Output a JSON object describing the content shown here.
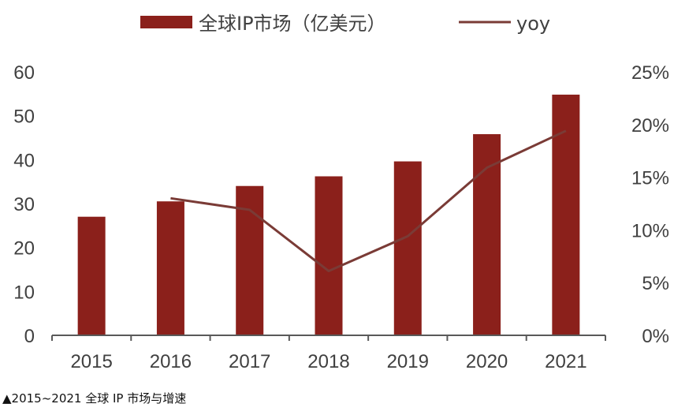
{
  "caption": "▲2015~2021 全球 IP 市场与增速",
  "colors": {
    "bar": "#8b201b",
    "line": "#7a3b36",
    "axis": "#595959",
    "text": "#404040"
  },
  "chart_data": {
    "type": "bar",
    "title": "",
    "categories": [
      "2015",
      "2016",
      "2017",
      "2018",
      "2019",
      "2020",
      "2021"
    ],
    "series": [
      {
        "name": "全球IP市场（亿美元）",
        "type": "bar",
        "axis": "left",
        "values": [
          27,
          30.5,
          34,
          36.2,
          39.6,
          45.8,
          54.8
        ]
      },
      {
        "name": "yoy",
        "type": "line",
        "axis": "right",
        "values": [
          null,
          13.0,
          11.9,
          6.1,
          9.4,
          15.9,
          19.4
        ]
      }
    ],
    "y_left": {
      "range": [
        0,
        60
      ],
      "ticks": [
        "0",
        "10",
        "20",
        "30",
        "40",
        "50",
        "60"
      ]
    },
    "y_right": {
      "range": [
        0,
        25
      ],
      "ticks": [
        "0%",
        "5%",
        "10%",
        "15%",
        "20%",
        "25%"
      ]
    },
    "legend_position": "top",
    "grid": false
  }
}
